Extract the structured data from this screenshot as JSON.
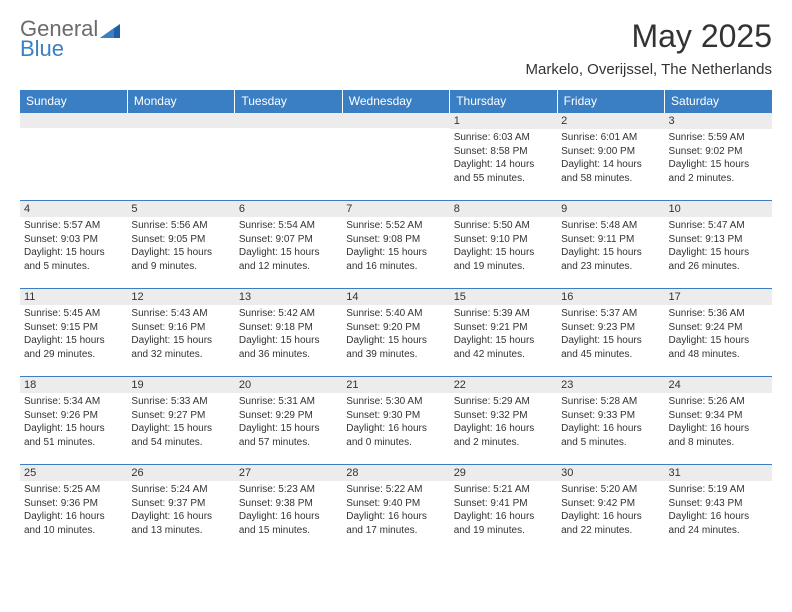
{
  "logo": {
    "line1": "General",
    "line2": "Blue"
  },
  "title": "May 2025",
  "location": "Markelo, Overijssel, The Netherlands",
  "colors": {
    "header_bg": "#3a7fc4",
    "header_text": "#ffffff",
    "datebar_bg": "#ececec",
    "border": "#3a7fc4",
    "text": "#333333",
    "logo_gray": "#6b6b6b",
    "logo_blue": "#3a7fc4",
    "page_bg": "#ffffff"
  },
  "day_headers": [
    "Sunday",
    "Monday",
    "Tuesday",
    "Wednesday",
    "Thursday",
    "Friday",
    "Saturday"
  ],
  "weeks": [
    [
      {
        "date": "",
        "sunrise": "",
        "sunset": "",
        "daylight": ""
      },
      {
        "date": "",
        "sunrise": "",
        "sunset": "",
        "daylight": ""
      },
      {
        "date": "",
        "sunrise": "",
        "sunset": "",
        "daylight": ""
      },
      {
        "date": "",
        "sunrise": "",
        "sunset": "",
        "daylight": ""
      },
      {
        "date": "1",
        "sunrise": "Sunrise: 6:03 AM",
        "sunset": "Sunset: 8:58 PM",
        "daylight": "Daylight: 14 hours and 55 minutes."
      },
      {
        "date": "2",
        "sunrise": "Sunrise: 6:01 AM",
        "sunset": "Sunset: 9:00 PM",
        "daylight": "Daylight: 14 hours and 58 minutes."
      },
      {
        "date": "3",
        "sunrise": "Sunrise: 5:59 AM",
        "sunset": "Sunset: 9:02 PM",
        "daylight": "Daylight: 15 hours and 2 minutes."
      }
    ],
    [
      {
        "date": "4",
        "sunrise": "Sunrise: 5:57 AM",
        "sunset": "Sunset: 9:03 PM",
        "daylight": "Daylight: 15 hours and 5 minutes."
      },
      {
        "date": "5",
        "sunrise": "Sunrise: 5:56 AM",
        "sunset": "Sunset: 9:05 PM",
        "daylight": "Daylight: 15 hours and 9 minutes."
      },
      {
        "date": "6",
        "sunrise": "Sunrise: 5:54 AM",
        "sunset": "Sunset: 9:07 PM",
        "daylight": "Daylight: 15 hours and 12 minutes."
      },
      {
        "date": "7",
        "sunrise": "Sunrise: 5:52 AM",
        "sunset": "Sunset: 9:08 PM",
        "daylight": "Daylight: 15 hours and 16 minutes."
      },
      {
        "date": "8",
        "sunrise": "Sunrise: 5:50 AM",
        "sunset": "Sunset: 9:10 PM",
        "daylight": "Daylight: 15 hours and 19 minutes."
      },
      {
        "date": "9",
        "sunrise": "Sunrise: 5:48 AM",
        "sunset": "Sunset: 9:11 PM",
        "daylight": "Daylight: 15 hours and 23 minutes."
      },
      {
        "date": "10",
        "sunrise": "Sunrise: 5:47 AM",
        "sunset": "Sunset: 9:13 PM",
        "daylight": "Daylight: 15 hours and 26 minutes."
      }
    ],
    [
      {
        "date": "11",
        "sunrise": "Sunrise: 5:45 AM",
        "sunset": "Sunset: 9:15 PM",
        "daylight": "Daylight: 15 hours and 29 minutes."
      },
      {
        "date": "12",
        "sunrise": "Sunrise: 5:43 AM",
        "sunset": "Sunset: 9:16 PM",
        "daylight": "Daylight: 15 hours and 32 minutes."
      },
      {
        "date": "13",
        "sunrise": "Sunrise: 5:42 AM",
        "sunset": "Sunset: 9:18 PM",
        "daylight": "Daylight: 15 hours and 36 minutes."
      },
      {
        "date": "14",
        "sunrise": "Sunrise: 5:40 AM",
        "sunset": "Sunset: 9:20 PM",
        "daylight": "Daylight: 15 hours and 39 minutes."
      },
      {
        "date": "15",
        "sunrise": "Sunrise: 5:39 AM",
        "sunset": "Sunset: 9:21 PM",
        "daylight": "Daylight: 15 hours and 42 minutes."
      },
      {
        "date": "16",
        "sunrise": "Sunrise: 5:37 AM",
        "sunset": "Sunset: 9:23 PM",
        "daylight": "Daylight: 15 hours and 45 minutes."
      },
      {
        "date": "17",
        "sunrise": "Sunrise: 5:36 AM",
        "sunset": "Sunset: 9:24 PM",
        "daylight": "Daylight: 15 hours and 48 minutes."
      }
    ],
    [
      {
        "date": "18",
        "sunrise": "Sunrise: 5:34 AM",
        "sunset": "Sunset: 9:26 PM",
        "daylight": "Daylight: 15 hours and 51 minutes."
      },
      {
        "date": "19",
        "sunrise": "Sunrise: 5:33 AM",
        "sunset": "Sunset: 9:27 PM",
        "daylight": "Daylight: 15 hours and 54 minutes."
      },
      {
        "date": "20",
        "sunrise": "Sunrise: 5:31 AM",
        "sunset": "Sunset: 9:29 PM",
        "daylight": "Daylight: 15 hours and 57 minutes."
      },
      {
        "date": "21",
        "sunrise": "Sunrise: 5:30 AM",
        "sunset": "Sunset: 9:30 PM",
        "daylight": "Daylight: 16 hours and 0 minutes."
      },
      {
        "date": "22",
        "sunrise": "Sunrise: 5:29 AM",
        "sunset": "Sunset: 9:32 PM",
        "daylight": "Daylight: 16 hours and 2 minutes."
      },
      {
        "date": "23",
        "sunrise": "Sunrise: 5:28 AM",
        "sunset": "Sunset: 9:33 PM",
        "daylight": "Daylight: 16 hours and 5 minutes."
      },
      {
        "date": "24",
        "sunrise": "Sunrise: 5:26 AM",
        "sunset": "Sunset: 9:34 PM",
        "daylight": "Daylight: 16 hours and 8 minutes."
      }
    ],
    [
      {
        "date": "25",
        "sunrise": "Sunrise: 5:25 AM",
        "sunset": "Sunset: 9:36 PM",
        "daylight": "Daylight: 16 hours and 10 minutes."
      },
      {
        "date": "26",
        "sunrise": "Sunrise: 5:24 AM",
        "sunset": "Sunset: 9:37 PM",
        "daylight": "Daylight: 16 hours and 13 minutes."
      },
      {
        "date": "27",
        "sunrise": "Sunrise: 5:23 AM",
        "sunset": "Sunset: 9:38 PM",
        "daylight": "Daylight: 16 hours and 15 minutes."
      },
      {
        "date": "28",
        "sunrise": "Sunrise: 5:22 AM",
        "sunset": "Sunset: 9:40 PM",
        "daylight": "Daylight: 16 hours and 17 minutes."
      },
      {
        "date": "29",
        "sunrise": "Sunrise: 5:21 AM",
        "sunset": "Sunset: 9:41 PM",
        "daylight": "Daylight: 16 hours and 19 minutes."
      },
      {
        "date": "30",
        "sunrise": "Sunrise: 5:20 AM",
        "sunset": "Sunset: 9:42 PM",
        "daylight": "Daylight: 16 hours and 22 minutes."
      },
      {
        "date": "31",
        "sunrise": "Sunrise: 5:19 AM",
        "sunset": "Sunset: 9:43 PM",
        "daylight": "Daylight: 16 hours and 24 minutes."
      }
    ]
  ]
}
